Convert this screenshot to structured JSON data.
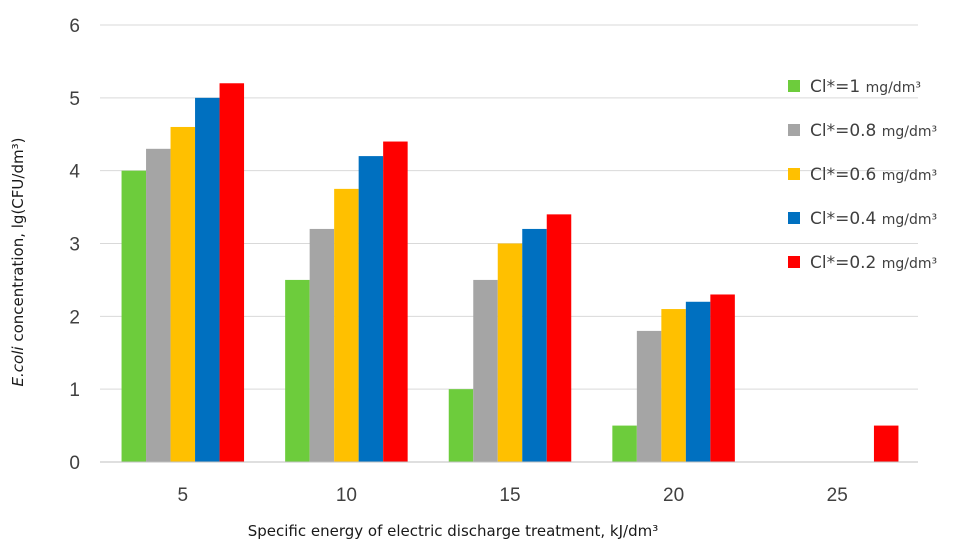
{
  "chart_data": {
    "type": "bar",
    "title": "",
    "xlabel": "Specific energy of electric discharge treatment, kJ/dm³",
    "ylabel_italic": "E.coli",
    "ylabel_rest": " concentration, lg(CFU/dm³)",
    "ylim": [
      0,
      6
    ],
    "yticks": [
      "0",
      "1",
      "2",
      "3",
      "4",
      "5",
      "6"
    ],
    "categories": [
      "5",
      "10",
      "15",
      "20",
      "25"
    ],
    "grid": true,
    "legend_position": "right",
    "series": [
      {
        "name_main": "Cl*=1 ",
        "name_unit": "mg/dm³",
        "color": "#6dcc3c",
        "values": [
          4.0,
          2.5,
          1.0,
          0.5,
          0
        ]
      },
      {
        "name_main": "Cl*=0.8 ",
        "name_unit": "mg/dm³",
        "color": "#a5a5a5",
        "values": [
          4.3,
          3.2,
          2.5,
          1.8,
          0
        ]
      },
      {
        "name_main": "Cl*=0.6 ",
        "name_unit": "mg/dm³",
        "color": "#ffc000",
        "values": [
          4.6,
          3.75,
          3.0,
          2.1,
          0
        ]
      },
      {
        "name_main": "Cl*=0.4 ",
        "name_unit": "mg/dm³",
        "color": "#0070c0",
        "values": [
          5.0,
          4.2,
          3.2,
          2.2,
          0
        ]
      },
      {
        "name_main": "Cl*=0.2 ",
        "name_unit": "mg/dm³",
        "color": "#ff0000",
        "values": [
          5.2,
          4.4,
          3.4,
          2.3,
          0.5
        ]
      }
    ]
  }
}
